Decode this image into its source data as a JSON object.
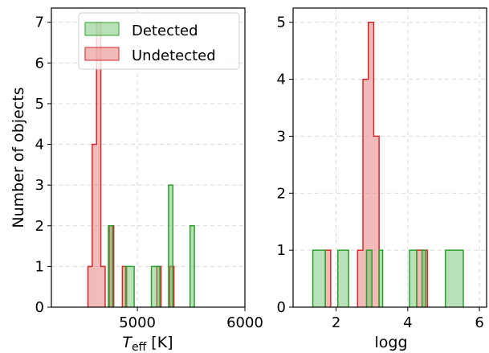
{
  "chart_data": [
    {
      "type": "histogram",
      "xlabel": "T",
      "xlabel_sub": "eff",
      "xlabel_unit": "[K]",
      "ylabel": "Number of objects",
      "xlim": [
        4200,
        6000
      ],
      "ylim": [
        0,
        7.35
      ],
      "xticks": [
        5000,
        6000
      ],
      "yticks": [
        0,
        1,
        2,
        3,
        4,
        5,
        6,
        7
      ],
      "grid": true,
      "legend": {
        "placement": "top-right",
        "entries": [
          {
            "label": "Detected",
            "color": "#2ca02c"
          },
          {
            "label": "Undetected",
            "color": "#d62728"
          }
        ]
      },
      "series": [
        {
          "name": "Undetected",
          "color": "#d62728",
          "fill": "rgba(232,117,117,0.5)",
          "bins": [
            4540,
            4580,
            4620,
            4660,
            4700,
            4740,
            4780,
            4820,
            4860,
            4900,
            4940,
            4980,
            5020,
            5060,
            5100,
            5140,
            5180,
            5220,
            5260,
            5300,
            5340
          ],
          "counts": [
            1,
            4,
            7,
            1,
            0,
            2,
            0,
            0,
            1,
            0,
            0,
            0,
            0,
            0,
            0,
            0,
            1,
            0,
            0,
            1
          ]
        },
        {
          "name": "Detected",
          "color": "#2ca02c",
          "fill": "rgba(114,196,114,0.5)",
          "bins": [
            4730,
            4770,
            4810,
            4850,
            4890,
            4930,
            4970,
            5010,
            5050,
            5090,
            5130,
            5170,
            5210,
            5250,
            5290,
            5330,
            5370,
            5410,
            5450,
            5490,
            5530
          ],
          "counts": [
            2,
            0,
            0,
            0,
            1,
            1,
            0,
            0,
            0,
            0,
            1,
            1,
            0,
            0,
            3,
            0,
            0,
            0,
            0,
            2
          ]
        }
      ]
    },
    {
      "type": "histogram",
      "xlabel": "logg",
      "xlim": [
        0.8,
        6.2
      ],
      "ylim": [
        0,
        5.25
      ],
      "xticks": [
        2,
        4,
        6
      ],
      "yticks": [
        0,
        1,
        2,
        3,
        4,
        5
      ],
      "grid": true,
      "series": [
        {
          "name": "Undetected",
          "color": "#d62728",
          "fill": "rgba(232,117,117,0.5)",
          "bins": [
            1.7,
            1.85,
            2.0,
            2.15,
            2.3,
            2.45,
            2.6,
            2.75,
            2.9,
            3.05,
            3.2,
            3.35,
            3.5,
            3.65,
            3.8,
            3.95,
            4.1,
            4.25,
            4.4,
            4.55
          ],
          "counts": [
            1,
            0,
            0,
            0,
            0,
            0,
            1,
            4,
            5,
            3,
            0,
            0,
            0,
            0,
            0,
            0,
            0,
            1,
            1
          ]
        },
        {
          "name": "Detected",
          "color": "#2ca02c",
          "fill": "rgba(114,196,114,0.5)",
          "bins": [
            1.35,
            1.7,
            2.05,
            2.2,
            2.35,
            2.55,
            2.7,
            2.85,
            3.0,
            3.2,
            3.3,
            3.4,
            4.05,
            4.25,
            4.4,
            4.5,
            5.05,
            5.55
          ],
          "counts": [
            1,
            0,
            1,
            1,
            0,
            0,
            0,
            1,
            0,
            1,
            0,
            0,
            1,
            0,
            1,
            0,
            1
          ]
        }
      ]
    }
  ]
}
